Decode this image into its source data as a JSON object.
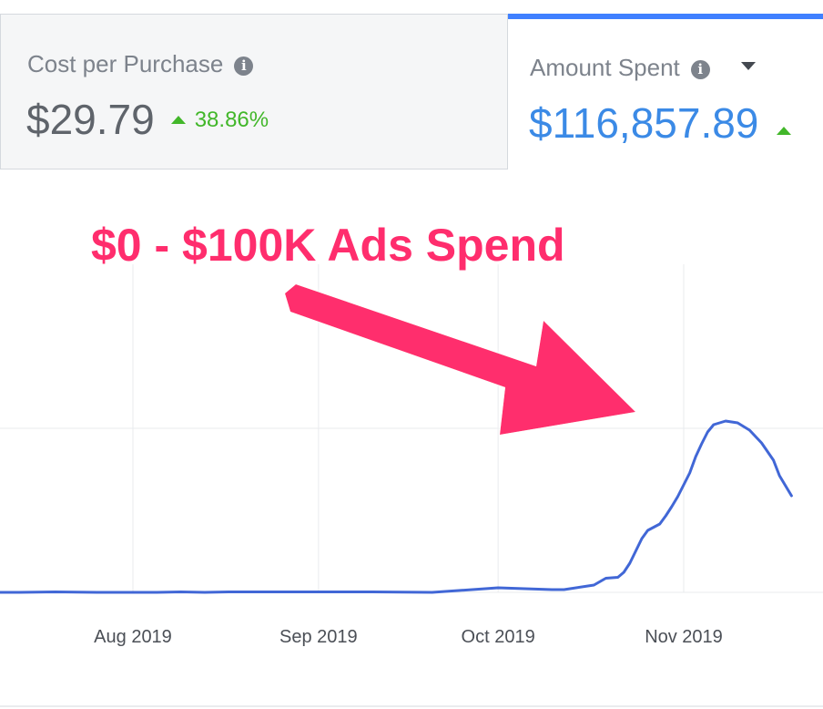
{
  "metrics": {
    "cost_per_purchase": {
      "label": "Cost per Purchase",
      "value": "$29.79",
      "delta": "38.86%"
    },
    "amount_spent": {
      "label": "Amount Spent",
      "value": "$116,857.89"
    }
  },
  "annotation": {
    "text": "$0 - $100K Ads Spend"
  },
  "colors": {
    "line": "#4167d6",
    "accent": "#4080ff",
    "positive": "#42b72a",
    "annotation": "#ff2d6d"
  },
  "chart_data": {
    "type": "line",
    "title": "",
    "xlabel": "",
    "ylabel": "",
    "x_tick_labels": [
      "Aug 2019",
      "Sep 2019",
      "Oct 2019",
      "Nov 2019"
    ],
    "x_tick_dates": [
      "2019-08-01",
      "2019-09-01",
      "2019-10-01",
      "2019-11-01"
    ],
    "grid": true,
    "series": [
      {
        "x": [
          "2019-07-08",
          "2019-07-13",
          "2019-07-19",
          "2019-07-26",
          "2019-08-01",
          "2019-08-05",
          "2019-08-09",
          "2019-08-13",
          "2019-08-17",
          "2019-08-21",
          "2019-08-28",
          "2019-09-01",
          "2019-09-10",
          "2019-09-20",
          "2019-10-01",
          "2019-10-10",
          "2019-10-12",
          "2019-10-13",
          "2019-10-17",
          "2019-10-19",
          "2019-10-21",
          "2019-10-22",
          "2019-10-23",
          "2019-10-25",
          "2019-10-26",
          "2019-10-28",
          "2019-10-29",
          "2019-10-30",
          "2019-10-31",
          "2019-11-01",
          "2019-11-02",
          "2019-11-03",
          "2019-11-04",
          "2019-11-05",
          "2019-11-06",
          "2019-11-08",
          "2019-11-10",
          "2019-11-12",
          "2019-11-14",
          "2019-11-16",
          "2019-11-17",
          "2019-11-18",
          "2019-11-19"
        ],
        "y": [
          0.0,
          0.0,
          0.5,
          0.0,
          0.0,
          0.0,
          0.5,
          0.0,
          0.5,
          0.5,
          0.5,
          0.5,
          0.5,
          0.0,
          5.0,
          3.0,
          3.0,
          4.0,
          8.0,
          15.5,
          16.5,
          22.0,
          32.0,
          59.0,
          68.0,
          75.0,
          84.0,
          94.0,
          105.0,
          118.0,
          131.0,
          149.0,
          163.0,
          176.0,
          184.0,
          188.0,
          186.0,
          178.0,
          164.0,
          145.0,
          128.0,
          117.0,
          106.0
        ]
      }
    ]
  }
}
